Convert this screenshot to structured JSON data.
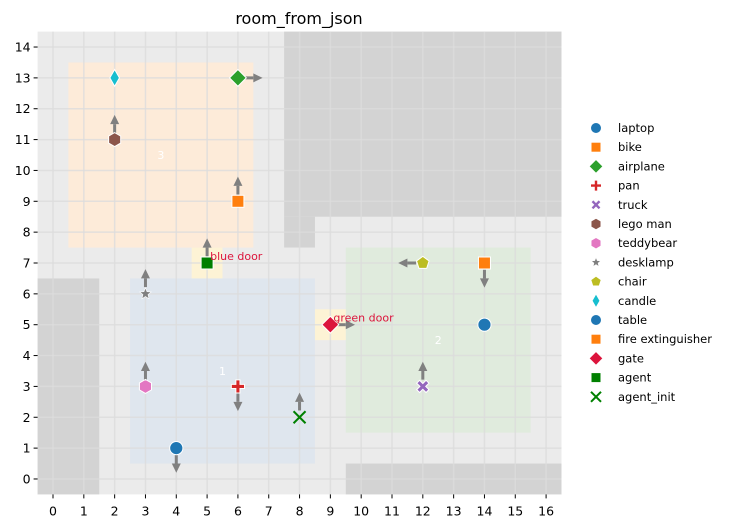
{
  "chart_data": {
    "type": "scatter",
    "title": "room_from_json",
    "xlim": [
      -0.5,
      16.5
    ],
    "ylim": [
      -0.5,
      14.5
    ],
    "x_ticks": [
      0,
      1,
      2,
      3,
      4,
      5,
      6,
      7,
      8,
      9,
      10,
      11,
      12,
      13,
      14,
      15,
      16
    ],
    "y_ticks": [
      0,
      1,
      2,
      3,
      4,
      5,
      6,
      7,
      8,
      9,
      10,
      11,
      12,
      13,
      14
    ],
    "grid": true,
    "legend_position": "right",
    "colors": {
      "background": "#ebebeb",
      "wall": "#d3d3d3",
      "grid": "#dcdcdc",
      "arrow": "#808080",
      "door": "#fdf3d5"
    },
    "walls": [
      {
        "x": [
          -0.5,
          1.5
        ],
        "y": [
          -0.5,
          6.5
        ]
      },
      {
        "x": [
          7.5,
          16.5
        ],
        "y": [
          8.5,
          14.5
        ]
      },
      {
        "x": [
          7.5,
          8.5
        ],
        "y": [
          7.5,
          8.5
        ]
      },
      {
        "x": [
          9.5,
          16.5
        ],
        "y": [
          -0.5,
          0.5
        ]
      }
    ],
    "rooms": [
      {
        "label": "3",
        "x": [
          0.5,
          6.5
        ],
        "y": [
          7.5,
          13.5
        ],
        "label_at": [
          3.5,
          10.5
        ],
        "color": "#fdebd9"
      },
      {
        "label": "1",
        "x": [
          2.5,
          8.5
        ],
        "y": [
          0.5,
          6.5
        ],
        "label_at": [
          5.5,
          3.5
        ],
        "color": "#dfe6ee"
      },
      {
        "label": "2",
        "x": [
          9.5,
          15.5
        ],
        "y": [
          1.5,
          7.5
        ],
        "label_at": [
          12.5,
          4.5
        ],
        "color": "#e0ebdd"
      }
    ],
    "doors": [
      {
        "label": "blue door",
        "x": 5,
        "y": 7
      },
      {
        "label": "green door",
        "x": 9,
        "y": 5
      }
    ],
    "door_label_color": "#dc143c",
    "series": [
      {
        "name": "laptop",
        "x": 4,
        "y": 1,
        "marker": "circle",
        "color": "#1f77b4",
        "facing": "down"
      },
      {
        "name": "bike",
        "x": 6,
        "y": 9,
        "marker": "square",
        "color": "#ff7f0e",
        "facing": "up"
      },
      {
        "name": "airplane",
        "x": 6,
        "y": 13,
        "marker": "diamond",
        "color": "#2ca02c",
        "facing": "right"
      },
      {
        "name": "pan",
        "x": 6,
        "y": 3,
        "marker": "plus",
        "color": "#d62728",
        "facing": "down"
      },
      {
        "name": "truck",
        "x": 12,
        "y": 3,
        "marker": "x-filled",
        "color": "#9467bd",
        "facing": "up"
      },
      {
        "name": "lego man",
        "x": 2,
        "y": 11,
        "marker": "hexagon",
        "color": "#8c564b",
        "facing": "up"
      },
      {
        "name": "teddybear",
        "x": 3,
        "y": 3,
        "marker": "hexagon",
        "color": "#e377c2",
        "facing": "up"
      },
      {
        "name": "desklamp",
        "x": 3,
        "y": 6,
        "marker": "star",
        "color": "#7f7f7f",
        "facing": "up"
      },
      {
        "name": "chair",
        "x": 12,
        "y": 7,
        "marker": "pentagon",
        "color": "#bcbd22",
        "facing": "left"
      },
      {
        "name": "candle",
        "x": 2,
        "y": 13,
        "marker": "thin-diamond",
        "color": "#17becf",
        "facing": null
      },
      {
        "name": "table",
        "x": 14,
        "y": 5,
        "marker": "circle",
        "color": "#1f77b4",
        "facing": null
      },
      {
        "name": "fire extinguisher",
        "x": 14,
        "y": 7,
        "marker": "square",
        "color": "#ff7f0e",
        "facing": "down"
      },
      {
        "name": "gate",
        "x": 9,
        "y": 5,
        "marker": "diamond",
        "color": "#dc143c",
        "facing": "right"
      },
      {
        "name": "agent",
        "x": 5,
        "y": 7,
        "marker": "square",
        "color": "#008000",
        "facing": "up"
      },
      {
        "name": "agent_init",
        "x": 8,
        "y": 2,
        "marker": "x",
        "color": "#008000",
        "facing": "up"
      }
    ]
  }
}
